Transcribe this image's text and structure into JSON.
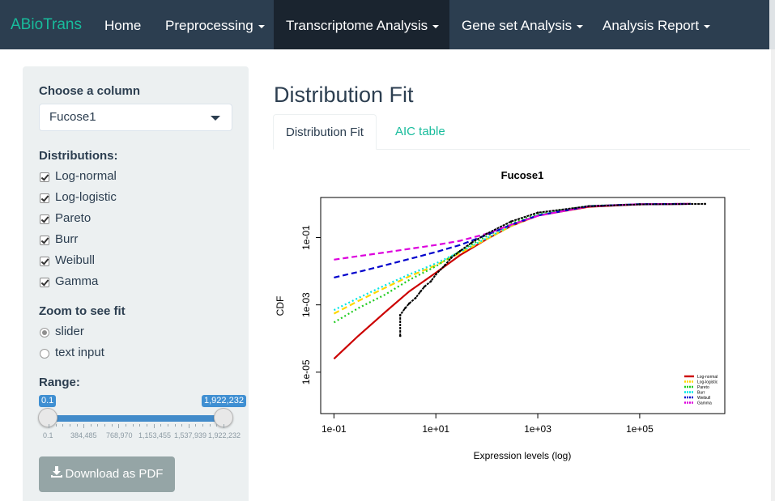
{
  "navbar": {
    "brand": "ABioTrans",
    "items": [
      {
        "label": "Home",
        "dropdown": false
      },
      {
        "label": "Preprocessing",
        "dropdown": true
      },
      {
        "label": "Transcriptome Analysis",
        "dropdown": true,
        "active": true
      },
      {
        "label": "Gene set Analysis",
        "dropdown": true
      },
      {
        "label": "Analysis Report",
        "dropdown": true
      }
    ]
  },
  "sidebar": {
    "column_label": "Choose a column",
    "column_value": "Fucose1",
    "distributions_label": "Distributions:",
    "distributions": [
      "Log-normal",
      "Log-logistic",
      "Pareto",
      "Burr",
      "Weibull",
      "Gamma"
    ],
    "zoom_label": "Zoom to see fit",
    "zoom_options": [
      "slider",
      "text input"
    ],
    "zoom_selected": "slider",
    "range_label": "Range:",
    "range_min_value": "0.1",
    "range_max_value": "1,922,232",
    "range_ticks": [
      "0.1",
      "384,485",
      "768,970",
      "1,153,455",
      "1,537,939",
      "1,922,232"
    ],
    "download_label": "Download as PDF"
  },
  "main": {
    "title": "Distribution Fit",
    "tabs": [
      "Distribution Fit",
      "AIC table"
    ],
    "active_tab": "Distribution Fit"
  },
  "chart_data": {
    "type": "line",
    "title": "Fucose1",
    "xlabel": "Expression levels (log)",
    "ylabel": "CDF",
    "x_scale": "log",
    "y_scale": "log",
    "xlim": [
      0.1,
      1000000
    ],
    "ylim": [
      1e-05,
      1
    ],
    "x_ticks": [
      "1e-01",
      "1e+01",
      "1e+03",
      "1e+05"
    ],
    "y_ticks": [
      "1e-05",
      "1e-03",
      "1e-01"
    ],
    "legend_position": "bottom-right",
    "empirical": {
      "name": "",
      "color": "#000000",
      "points": [
        [
          2,
          0.00012
        ],
        [
          2,
          0.0005
        ],
        [
          2.5,
          0.0008
        ],
        [
          3,
          0.0011
        ],
        [
          4,
          0.0016
        ],
        [
          5,
          0.0025
        ],
        [
          6,
          0.0035
        ],
        [
          8,
          0.005
        ],
        [
          10,
          0.008
        ],
        [
          15,
          0.015
        ],
        [
          20,
          0.025
        ],
        [
          30,
          0.04
        ],
        [
          50,
          0.07
        ],
        [
          100,
          0.13
        ],
        [
          300,
          0.3
        ],
        [
          1000,
          0.55
        ],
        [
          10000,
          0.85
        ],
        [
          100000,
          0.97
        ],
        [
          1922232,
          1
        ]
      ]
    },
    "series": [
      {
        "name": "Log-normal",
        "color": "#cc0000",
        "style": "solid",
        "x": [
          0.1,
          0.3,
          1,
          3,
          10,
          30,
          100,
          300,
          1000,
          10000,
          100000,
          1000000
        ],
        "values": [
          2.5e-05,
          0.00012,
          0.0006,
          0.0025,
          0.009,
          0.03,
          0.09,
          0.22,
          0.45,
          0.82,
          0.97,
          1.0
        ]
      },
      {
        "name": "Log-logistic",
        "color": "#ffd700",
        "style": "dashed",
        "x": [
          0.1,
          0.3,
          1,
          3,
          10,
          30,
          100,
          300,
          1000,
          10000,
          100000,
          1000000
        ],
        "values": [
          0.00055,
          0.0013,
          0.0032,
          0.007,
          0.015,
          0.035,
          0.09,
          0.22,
          0.45,
          0.85,
          0.98,
          1.0
        ]
      },
      {
        "name": "Pareto",
        "color": "#22cc22",
        "style": "dotted",
        "x": [
          0.1,
          0.3,
          1,
          3,
          10,
          30,
          100,
          300,
          1000,
          10000,
          100000,
          1000000
        ],
        "values": [
          0.0003,
          0.0008,
          0.002,
          0.0055,
          0.014,
          0.04,
          0.11,
          0.26,
          0.5,
          0.87,
          0.98,
          1.0
        ]
      },
      {
        "name": "Burr",
        "color": "#00e5e5",
        "style": "dotted",
        "x": [
          0.1,
          0.3,
          1,
          3,
          10,
          30,
          100,
          300,
          1000,
          10000,
          100000,
          1000000
        ],
        "values": [
          0.0007,
          0.0016,
          0.0038,
          0.008,
          0.017,
          0.038,
          0.095,
          0.23,
          0.46,
          0.86,
          0.98,
          1.0
        ]
      },
      {
        "name": "Weibull",
        "color": "#0000cc",
        "style": "dashed",
        "x": [
          0.1,
          0.3,
          1,
          3,
          10,
          30,
          100,
          300,
          1000,
          10000,
          100000,
          1000000
        ],
        "values": [
          0.0065,
          0.0095,
          0.015,
          0.023,
          0.037,
          0.06,
          0.12,
          0.24,
          0.45,
          0.85,
          0.98,
          1.0
        ]
      },
      {
        "name": "Gamma",
        "color": "#dd00dd",
        "style": "dashed",
        "x": [
          0.1,
          0.3,
          1,
          3,
          10,
          30,
          100,
          300,
          1000,
          10000,
          100000,
          1000000
        ],
        "values": [
          0.022,
          0.028,
          0.036,
          0.046,
          0.06,
          0.08,
          0.13,
          0.24,
          0.44,
          0.85,
          0.98,
          1.0
        ]
      }
    ]
  }
}
